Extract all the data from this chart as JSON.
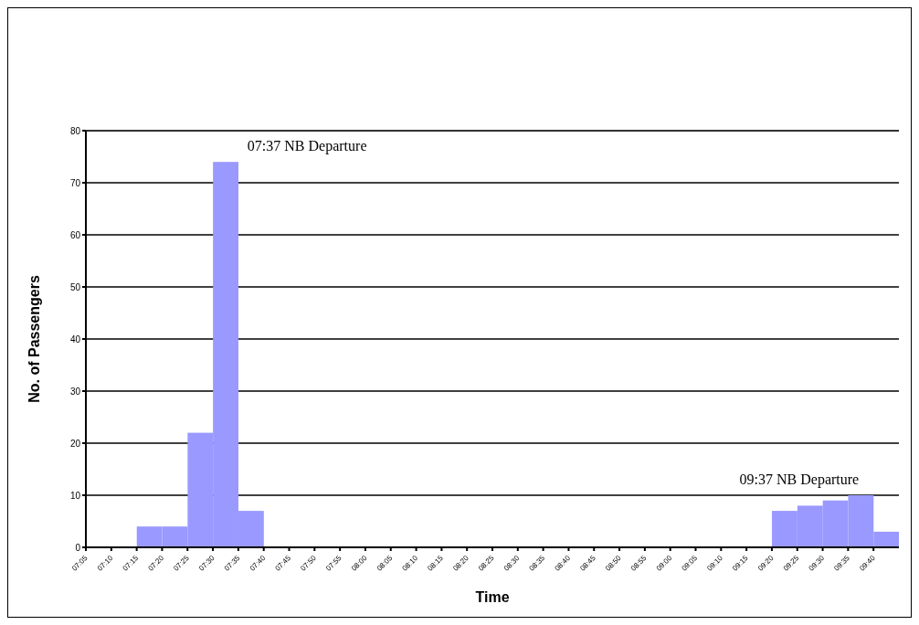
{
  "chart_data": {
    "type": "histogram",
    "xlabel": "Time",
    "ylabel": "No. of Passengers",
    "bins": [
      7.25,
      7.3333,
      7.4167,
      7.5,
      7.5833,
      7.6667,
      7.75,
      7.8333,
      7.9167,
      8,
      8.0833,
      8.1667,
      8.25,
      8.3333,
      8.4167,
      8.5,
      8.5833,
      8.6667,
      8.75,
      8.8333,
      8.9167,
      9,
      9.0833,
      9.1667,
      9.25,
      9.3333,
      9.4167,
      9.5,
      9.5833,
      9.6667,
      9.75
    ],
    "values": [
      4,
      4,
      22,
      74,
      7,
      0,
      0,
      0,
      0,
      0,
      0,
      0,
      0,
      0,
      0,
      0,
      0,
      0,
      0,
      0,
      0,
      0,
      0,
      0,
      0,
      7,
      8,
      9,
      10,
      3
    ],
    "color": "#9999ff",
    "xlim": [
      7.0833,
      9.75
    ],
    "ylim": [
      0,
      80
    ],
    "yticks": [
      0,
      10,
      20,
      30,
      40,
      50,
      60,
      70,
      80
    ],
    "xticks": [
      {
        "value": 7.0833,
        "label": "07:05"
      },
      {
        "value": 7.1667,
        "label": "07:10"
      },
      {
        "value": 7.25,
        "label": "07:15"
      },
      {
        "value": 7.3333,
        "label": "07:20"
      },
      {
        "value": 7.4167,
        "label": "07:25"
      },
      {
        "value": 7.5,
        "label": "07:30"
      },
      {
        "value": 7.5833,
        "label": "07:35"
      },
      {
        "value": 7.6667,
        "label": "07:40"
      },
      {
        "value": 7.75,
        "label": "07:45"
      },
      {
        "value": 7.8333,
        "label": "07:50"
      },
      {
        "value": 7.9167,
        "label": "07:55"
      },
      {
        "value": 8,
        "label": "08:00"
      },
      {
        "value": 8.0833,
        "label": "08:05"
      },
      {
        "value": 8.1667,
        "label": "08:10"
      },
      {
        "value": 8.25,
        "label": "08:15"
      },
      {
        "value": 8.3333,
        "label": "08:20"
      },
      {
        "value": 8.4167,
        "label": "08:25"
      },
      {
        "value": 8.5,
        "label": "08:30"
      },
      {
        "value": 8.5833,
        "label": "08:35"
      },
      {
        "value": 8.6667,
        "label": "08:40"
      },
      {
        "value": 8.75,
        "label": "08:45"
      },
      {
        "value": 8.8333,
        "label": "08:50"
      },
      {
        "value": 8.9167,
        "label": "08:55"
      },
      {
        "value": 9,
        "label": "09:00"
      },
      {
        "value": 9.0833,
        "label": "09:05"
      },
      {
        "value": 9.1667,
        "label": "09:10"
      },
      {
        "value": 9.25,
        "label": "09:15"
      },
      {
        "value": 9.3333,
        "label": "09:20"
      },
      {
        "value": 9.4167,
        "label": "09:25"
      },
      {
        "value": 9.5,
        "label": "09:30"
      },
      {
        "value": 9.5833,
        "label": "09:35"
      },
      {
        "value": 9.6667,
        "label": "09:40"
      }
    ],
    "grid": "y",
    "annotations": [
      {
        "text": "07:37 NB Departure",
        "x": 7.5833,
        "y": 74
      },
      {
        "text": "09:37 NB Departure",
        "x": 9.6667,
        "y": 10
      }
    ]
  }
}
